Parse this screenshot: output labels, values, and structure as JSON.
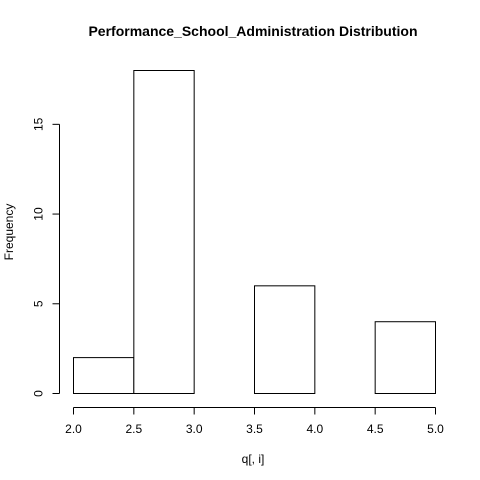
{
  "chart_data": {
    "type": "bar",
    "title": "Performance_School_Administration Distribution",
    "xlabel": "q[, i]",
    "ylabel": "Frequency",
    "bins": [
      {
        "from": 2.0,
        "to": 2.5,
        "count": 2
      },
      {
        "from": 2.5,
        "to": 3.0,
        "count": 18
      },
      {
        "from": 3.0,
        "to": 3.5,
        "count": 0
      },
      {
        "from": 3.5,
        "to": 4.0,
        "count": 6
      },
      {
        "from": 4.0,
        "to": 4.5,
        "count": 0
      },
      {
        "from": 4.5,
        "to": 5.0,
        "count": 4
      }
    ],
    "xlim": [
      2.0,
      5.0
    ],
    "ylim": [
      0,
      18
    ],
    "xticks": [
      "2.0",
      "2.5",
      "3.0",
      "3.5",
      "4.0",
      "4.5",
      "5.0"
    ],
    "yticks": [
      "0",
      "5",
      "10",
      "15"
    ],
    "grid": false,
    "legend": "none"
  }
}
